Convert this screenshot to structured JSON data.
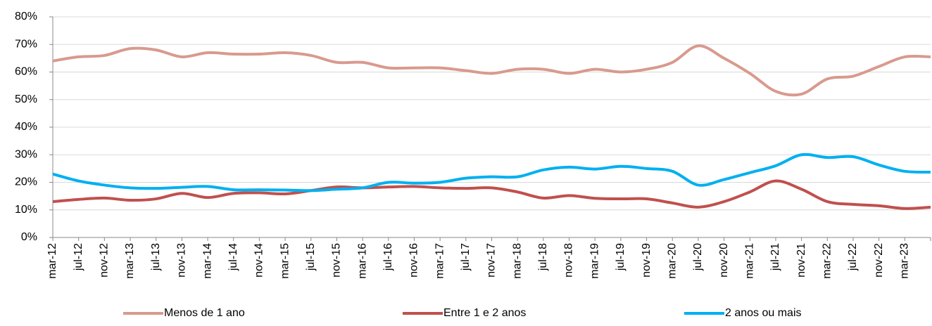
{
  "chart_data": {
    "type": "line",
    "categories": [
      "mar-12",
      "jul-12",
      "nov-12",
      "mar-13",
      "jul-13",
      "nov-13",
      "mar-14",
      "jul-14",
      "nov-14",
      "mar-15",
      "jul-15",
      "nov-15",
      "mar-16",
      "jul-16",
      "nov-16",
      "mar-17",
      "jul-17",
      "nov-17",
      "mar-18",
      "jul-18",
      "nov-18",
      "mar-19",
      "jul-19",
      "nov-19",
      "mar-20",
      "jul-20",
      "nov-20",
      "mar-21",
      "jul-21",
      "nov-21",
      "mar-22",
      "jul-22",
      "nov-22",
      "mar-23",
      null
    ],
    "series": [
      {
        "name": "Menos de 1 ano",
        "color": "#d99a8e",
        "values": [
          64,
          65.5,
          66,
          68.5,
          68,
          65.5,
          67,
          66.5,
          66.5,
          67,
          66,
          63.5,
          63.5,
          61.5,
          61.5,
          61.5,
          60.5,
          59.5,
          61,
          61,
          59.5,
          61,
          60,
          61,
          63.5,
          69.5,
          65,
          59.5,
          53,
          52,
          57.5,
          58.5,
          62,
          65.5,
          65.5
        ]
      },
      {
        "name": "Entre 1 e 2 anos",
        "color": "#c0504d",
        "values": [
          13,
          13.8,
          14.3,
          13.5,
          14,
          16,
          14.5,
          16,
          16.2,
          15.8,
          17,
          18.3,
          18,
          18.3,
          18.5,
          18,
          17.8,
          18,
          16.5,
          14.3,
          15.2,
          14.2,
          14,
          14,
          12.5,
          11,
          13,
          16.5,
          20.5,
          17.5,
          13,
          12,
          11.5,
          10.5,
          11
        ]
      },
      {
        "name": "2 anos ou mais",
        "color": "#00b0f0",
        "values": [
          23,
          20.5,
          19,
          18,
          17.8,
          18.2,
          18.5,
          17.3,
          17.3,
          17.2,
          17,
          17.5,
          18,
          20,
          19.7,
          20,
          21.5,
          22,
          22,
          24.5,
          25.5,
          24.8,
          25.8,
          25,
          24,
          19,
          21,
          23.5,
          26,
          30,
          29,
          29.3,
          26.3,
          24,
          23.7
        ]
      }
    ],
    "ylim": [
      0,
      80
    ],
    "yticks": [
      {
        "value": 0,
        "label": "0%"
      },
      {
        "value": 10,
        "label": "10%"
      },
      {
        "value": 20,
        "label": "20%"
      },
      {
        "value": 30,
        "label": "30%"
      },
      {
        "value": 40,
        "label": "40%"
      },
      {
        "value": 50,
        "label": "50%"
      },
      {
        "value": 60,
        "label": "60%"
      },
      {
        "value": 70,
        "label": "70%"
      },
      {
        "value": 80,
        "label": "80%"
      }
    ],
    "grid": true,
    "legend": "bottom"
  }
}
